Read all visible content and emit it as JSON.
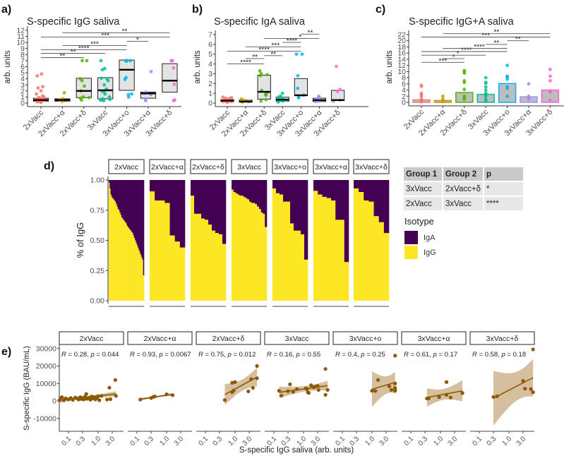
{
  "groups": [
    "2xVacc",
    "2xVacc+α",
    "2xVacc+δ",
    "3xVacc",
    "3xVacc+o",
    "3xVacc+α",
    "3xVacc+δ"
  ],
  "group_colors": [
    "#F8766D",
    "#C49A00",
    "#53B400",
    "#00C094",
    "#00B6EB",
    "#A58AFF",
    "#FB61D7"
  ],
  "chart_data": [
    {
      "panel_label": "a)",
      "type": "box",
      "title": "S-specific IgG saliva",
      "ylabel": "arb. units",
      "ylim": [
        0,
        12
      ],
      "yticks": [
        "0",
        "1",
        "2",
        "3",
        "4",
        "5",
        "6",
        "7",
        "8",
        "9",
        "10",
        "11",
        "12"
      ],
      "categories": [
        "2xVacc",
        "2xVacc+α",
        "2xVacc+δ",
        "3xVacc",
        "3xVacc+o",
        "3xVacc+α",
        "3xVacc+δ"
      ],
      "boxes": [
        {
          "q1": 0.3,
          "median": 0.5,
          "q3": 0.8
        },
        {
          "q1": 0.3,
          "median": 0.5,
          "q3": 0.7
        },
        {
          "q1": 0.9,
          "median": 2.0,
          "q3": 4.1
        },
        {
          "q1": 0.7,
          "median": 2.1,
          "q3": 4.2
        },
        {
          "q1": 2.1,
          "median": 5.5,
          "q3": 7.1
        },
        {
          "q1": 0.8,
          "median": 1.6,
          "q3": 1.8
        },
        {
          "q1": 1.8,
          "median": 3.7,
          "q3": 6.5
        }
      ],
      "points": [
        [
          0.2,
          0.3,
          0.4,
          0.5,
          0.6,
          0.3,
          0.4,
          0.5,
          0.7,
          0.8,
          0.9,
          1.0,
          1.2,
          1.5,
          2.0,
          2.5,
          2.7,
          4.5,
          4.8,
          0.1,
          0.2,
          0.6,
          0.4,
          0.5,
          0.3
        ],
        [
          0.3,
          0.4,
          0.5,
          0.6,
          0.7,
          1.7
        ],
        [
          0.5,
          0.8,
          0.9,
          1.0,
          2.0,
          2.8,
          3.7,
          4.0,
          7.0,
          7.0
        ],
        [
          0.4,
          0.5,
          0.6,
          0.7,
          1.0,
          1.5,
          1.9,
          2.3,
          3.0,
          3.7,
          4.0,
          4.1,
          5.5,
          5.7,
          7.0,
          0.5,
          2.0
        ],
        [
          1.0,
          1.4,
          1.5,
          3.9,
          4.2,
          7.0,
          7.0,
          7.0,
          6.9,
          7.0
        ],
        [
          0.4,
          0.7,
          1.4,
          1.6,
          1.8,
          5.2
        ],
        [
          0.4,
          0.5,
          3.1,
          5.8,
          7.0,
          7.0
        ]
      ],
      "significance": [
        {
          "from": "2xVacc",
          "to": "2xVacc+δ",
          "y": 7.5,
          "label": "**"
        },
        {
          "from": "2xVacc",
          "to": "3xVacc",
          "y": 8.2,
          "label": "**"
        },
        {
          "from": "2xVacc",
          "to": "3xVacc+o",
          "y": 8.8,
          "label": "****"
        },
        {
          "from": "2xVacc+α",
          "to": "3xVacc+o",
          "y": 9.5,
          "label": "***"
        },
        {
          "from": "3xVacc+o",
          "to": "3xVacc+α",
          "y": 10.2,
          "label": "*"
        },
        {
          "from": "2xVacc",
          "to": "3xVacc+δ",
          "y": 10.9,
          "label": "***"
        },
        {
          "from": "2xVacc+α",
          "to": "3xVacc+δ",
          "y": 11.6,
          "label": "**"
        }
      ]
    },
    {
      "panel_label": "b)",
      "type": "box",
      "title": "S-specific IgA saliva",
      "ylabel": "arb. units",
      "ylim": [
        0,
        7
      ],
      "yticks": [
        "0",
        "1",
        "2",
        "3",
        "4",
        "5",
        "6",
        "7"
      ],
      "categories": [
        "2xVacc",
        "2xVacc+α",
        "2xVacc+δ",
        "3xVacc",
        "3xVacc+o",
        "3xVacc+α",
        "3xVacc+δ"
      ],
      "boxes": [
        {
          "q1": 0.15,
          "median": 0.25,
          "q3": 0.35
        },
        {
          "q1": 0.1,
          "median": 0.15,
          "q3": 0.3
        },
        {
          "q1": 0.4,
          "median": 1.15,
          "q3": 2.85
        },
        {
          "q1": 0.2,
          "median": 0.35,
          "q3": 0.6
        },
        {
          "q1": 0.75,
          "median": 0.8,
          "q3": 2.5
        },
        {
          "q1": 0.15,
          "median": 0.3,
          "q3": 0.5
        },
        {
          "q1": 0.25,
          "median": 0.3,
          "q3": 1.3
        }
      ],
      "points": [
        [
          0.1,
          0.15,
          0.2,
          0.25,
          0.3,
          0.35,
          0.4,
          0.45,
          0.5,
          0.55,
          0.6,
          0.2,
          0.3,
          0.1,
          0.25,
          0.15,
          0.35,
          0.2,
          0.4,
          0.3
        ],
        [
          0.1,
          0.15,
          0.2,
          0.3,
          0.4
        ],
        [
          0.2,
          0.35,
          0.8,
          0.9,
          1.1,
          1.3,
          2.9,
          3.0,
          3.3,
          2.8
        ],
        [
          0.1,
          0.2,
          0.3,
          0.3,
          0.4,
          0.5,
          0.6,
          0.7,
          1.0,
          0.2,
          0.35
        ],
        [
          0.55,
          0.7,
          0.8,
          1.5,
          2.8,
          5.0,
          5.0
        ],
        [
          0.15,
          0.2,
          0.4,
          0.6,
          0.7
        ],
        [
          0.2,
          0.3,
          1.2,
          1.4,
          3.75
        ]
      ],
      "significance": [
        {
          "from": "2xVacc",
          "to": "2xVacc+δ",
          "y": 4.0,
          "label": "****"
        },
        {
          "from": "2xVacc+α",
          "to": "2xVacc+δ",
          "y": 4.55,
          "label": "**"
        },
        {
          "from": "2xVacc+δ",
          "to": "3xVacc",
          "y": 4.85,
          "label": "**"
        },
        {
          "from": "2xVacc",
          "to": "3xVacc+o",
          "y": 5.3,
          "label": "****"
        },
        {
          "from": "2xVacc+α",
          "to": "3xVacc+o",
          "y": 5.75,
          "label": "***"
        },
        {
          "from": "3xVacc",
          "to": "3xVacc+o",
          "y": 6.2,
          "label": "****"
        },
        {
          "from": "2xVacc+δ",
          "to": "3xVacc+α",
          "y": 6.6,
          "label": "*"
        },
        {
          "from": "3xVacc+o",
          "to": "3xVacc+α",
          "y": 7.05,
          "label": "**"
        }
      ]
    },
    {
      "panel_label": "c)",
      "type": "bar",
      "title": "S-specific IgG+A saliva",
      "ylabel": "arb. units",
      "ylim": [
        0,
        22
      ],
      "yticks": [
        "0",
        "2",
        "4",
        "6",
        "8",
        "10",
        "12",
        "14",
        "16",
        "18",
        "20",
        "22"
      ],
      "categories": [
        "2xVacc",
        "2xVacc+α",
        "2xVacc+δ",
        "3xVacc",
        "3xVacc+o",
        "3xVacc+α",
        "3xVacc+δ"
      ],
      "values": [
        0.8,
        0.6,
        3.2,
        2.6,
        6.1,
        1.8,
        4.0
      ],
      "points": [
        [
          0.2,
          0.5,
          1,
          2,
          2.5,
          3,
          5.2,
          5.5,
          0.8
        ],
        [
          0.3,
          0.5,
          1,
          2
        ],
        [
          1,
          2,
          4.2,
          6.5,
          7,
          9.5,
          10,
          10.3,
          1.5
        ],
        [
          0.5,
          1,
          2,
          3,
          4,
          5,
          6.2,
          6.5,
          8,
          2.5
        ],
        [
          2,
          4.5,
          5,
          7.5,
          8.2,
          8.5,
          12
        ],
        [
          1,
          1.5,
          2,
          6
        ],
        [
          0.7,
          3.4,
          3.7,
          7,
          8.5,
          10.7
        ]
      ],
      "significance": [
        {
          "from": "2xVacc",
          "to": "2xVacc+δ",
          "y": 13.0,
          "label": "***"
        },
        {
          "from": "2xVacc+α",
          "to": "2xVacc+δ",
          "y": 14.2,
          "label": "*"
        },
        {
          "from": "2xVacc",
          "to": "3xVacc",
          "y": 15.3,
          "label": "*"
        },
        {
          "from": "2xVacc",
          "to": "3xVacc+o",
          "y": 16.5,
          "label": "****"
        },
        {
          "from": "2xVacc+α",
          "to": "3xVacc+o",
          "y": 17.5,
          "label": "****"
        },
        {
          "from": "3xVacc",
          "to": "3xVacc+o",
          "y": 18.8,
          "label": "**"
        },
        {
          "from": "3xVacc+o",
          "to": "3xVacc+α",
          "y": 20.0,
          "label": "**"
        },
        {
          "from": "2xVacc",
          "to": "3xVacc+δ",
          "y": 21.2,
          "label": "***"
        },
        {
          "from": "2xVacc+α",
          "to": "3xVacc+δ",
          "y": 22.3,
          "label": "**"
        }
      ]
    },
    {
      "panel_label": "d)",
      "type": "stacked-bar",
      "ylabel": "% of IgG",
      "ylim": [
        0,
        1
      ],
      "yticks": [
        "0.00",
        "0.25",
        "0.50",
        "0.75",
        "1.00"
      ],
      "facets": [
        "2xVacc",
        "2xVacc+α",
        "2xVacc+δ",
        "3xVacc",
        "3xVacc+o",
        "3xVacc+α",
        "3xVacc+δ"
      ],
      "legend_title": "Isotype",
      "legend": [
        {
          "name": "IgA",
          "color": "#440154"
        },
        {
          "name": "IgG",
          "color": "#FDE725"
        }
      ],
      "igg_fraction": [
        [
          0.98,
          0.93,
          0.88,
          0.86,
          0.85,
          0.84,
          0.83,
          0.82,
          0.8,
          0.78,
          0.76,
          0.75,
          0.73,
          0.71,
          0.69,
          0.68,
          0.67,
          0.66,
          0.65,
          0.64,
          0.62,
          0.61,
          0.6,
          0.59,
          0.58,
          0.57,
          0.56,
          0.54,
          0.52,
          0.5,
          0.48,
          0.46,
          0.44,
          0.42,
          0.4,
          0.38,
          0.36,
          0.34,
          0.21
        ],
        [
          0.905,
          0.83,
          0.83,
          0.81,
          0.54,
          0.49,
          0.44
        ],
        [
          0.87,
          0.72,
          0.72,
          0.68,
          0.67,
          0.63,
          0.58,
          0.56,
          0.55,
          0.47
        ],
        [
          0.92,
          0.9,
          0.89,
          0.88,
          0.87,
          0.87,
          0.86,
          0.85,
          0.84,
          0.82,
          0.81,
          0.81,
          0.8,
          0.78,
          0.76,
          0.73,
          0.72,
          0.61
        ],
        [
          0.93,
          0.89,
          0.88,
          0.82,
          0.82,
          0.64,
          0.58,
          0.58,
          0.55,
          0.34
        ],
        [
          0.91,
          0.88,
          0.86,
          0.85,
          0.83,
          0.67,
          0.67,
          0.32
        ],
        [
          0.93,
          0.9,
          0.83,
          0.82,
          0.7,
          0.65,
          0.56
        ]
      ],
      "table": {
        "headers": [
          "Group 1",
          "Group 2",
          "p"
        ],
        "rows": [
          [
            "3xVacc",
            "2xVacc+δ",
            "*"
          ],
          [
            "2xVacc",
            "3xVacc",
            "****"
          ]
        ]
      }
    },
    {
      "panel_label": "e)",
      "type": "scatter",
      "xlabel": "S-specific IgG saliva (arb. units)",
      "ylabel": "S-specific IgG (BAU/mL)",
      "x_scale": "log10",
      "xticks": [
        "0.1",
        "0.3",
        "1.0",
        "3.0"
      ],
      "yticks": [
        "30000",
        "20000",
        "10000",
        "0",
        "-10000"
      ],
      "ylim": [
        -17000,
        32000
      ],
      "point_color": "#8B5A00",
      "ribbon_color": "#C8A97E",
      "facets": [
        {
          "name": "2xVacc",
          "R": "0.28",
          "p": "0.044",
          "points": [
            [
              0.05,
              500
            ],
            [
              0.055,
              1800
            ],
            [
              0.06,
              2200
            ],
            [
              0.07,
              400
            ],
            [
              0.08,
              1500
            ],
            [
              0.1,
              900
            ],
            [
              0.12,
              1700
            ],
            [
              0.14,
              600
            ],
            [
              0.17,
              2000
            ],
            [
              0.2,
              1300
            ],
            [
              0.22,
              800
            ],
            [
              0.25,
              2200
            ],
            [
              0.28,
              1100
            ],
            [
              0.3,
              1600
            ],
            [
              0.33,
              900
            ],
            [
              0.36,
              2500
            ],
            [
              0.4,
              4000
            ],
            [
              0.42,
              1200
            ],
            [
              0.5,
              1800
            ],
            [
              0.55,
              700
            ],
            [
              0.6,
              2600
            ],
            [
              0.65,
              1500
            ],
            [
              0.7,
              2200
            ],
            [
              0.8,
              900
            ],
            [
              0.9,
              1600
            ],
            [
              1.0,
              2700
            ],
            [
              1.1,
              400
            ],
            [
              1.3,
              2900
            ],
            [
              2.0,
              800
            ],
            [
              2.4,
              7600
            ],
            [
              2.6,
              1000
            ],
            [
              3.8,
              12000
            ],
            [
              4.0,
              2900
            ]
          ]
        },
        {
          "name": "2xVacc+α",
          "R": "0.93",
          "p": "0.0067",
          "points": [
            [
              0.13,
              800
            ],
            [
              0.3,
              1700
            ],
            [
              0.35,
              2200
            ],
            [
              0.4,
              2600
            ],
            [
              1.0,
              3800
            ],
            [
              1.6,
              3300
            ]
          ]
        },
        {
          "name": "2xVacc+δ",
          "R": "0.75",
          "p": "0.012",
          "points": [
            [
              0.45,
              500
            ],
            [
              0.8,
              5000
            ],
            [
              0.8,
              10400
            ],
            [
              0.9,
              6000
            ],
            [
              1.0,
              10800
            ],
            [
              2.8,
              5500
            ],
            [
              3.5,
              12500
            ],
            [
              4.0,
              7500
            ],
            [
              5.5,
              20000
            ],
            [
              5.5,
              13000
            ]
          ]
        },
        {
          "name": "3xVacc",
          "R": "0.16",
          "p": "0.55",
          "points": [
            [
              0.15,
              5800
            ],
            [
              0.18,
              3000
            ],
            [
              0.3,
              5600
            ],
            [
              0.35,
              9500
            ],
            [
              0.45,
              5200
            ],
            [
              0.6,
              6800
            ],
            [
              1.2,
              7200
            ],
            [
              1.3,
              6800
            ],
            [
              1.4,
              4900
            ],
            [
              1.5,
              4600
            ],
            [
              1.8,
              9000
            ],
            [
              2.2,
              7800
            ],
            [
              2.5,
              8200
            ],
            [
              3.0,
              8600
            ],
            [
              3.2,
              6300
            ],
            [
              5.5,
              18300
            ],
            [
              5.5,
              3500
            ],
            [
              6.5,
              6300
            ]
          ]
        },
        {
          "name": "3xVacc+o",
          "R": "0.4",
          "p": "0.25",
          "points": [
            [
              1.0,
              5800
            ],
            [
              1.3,
              5700
            ],
            [
              1.6,
              12000
            ],
            [
              3.8,
              8400
            ],
            [
              4.5,
              6300
            ],
            [
              6,
              25900
            ],
            [
              6,
              10000
            ],
            [
              6,
              7500
            ],
            [
              6,
              5800
            ],
            [
              6,
              6700
            ]
          ]
        },
        {
          "name": "3xVacc+α",
          "R": "0.61",
          "p": "0.17",
          "points": [
            [
              0.35,
              1400
            ],
            [
              0.4,
              1500
            ],
            [
              0.9,
              2200
            ],
            [
              1.6,
              3500
            ],
            [
              1.6,
              10800
            ],
            [
              2.2,
              2000
            ],
            [
              5.5,
              4500
            ]
          ]
        },
        {
          "name": "3xVacc+δ",
          "R": "0.58",
          "p": "0.18",
          "points": [
            [
              0.3,
              2300
            ],
            [
              0.4,
              2700
            ],
            [
              3.0,
              11500
            ],
            [
              3.5,
              7000
            ],
            [
              5.5,
              6800
            ],
            [
              6.5,
              29500
            ],
            [
              6.5,
              5000
            ]
          ]
        }
      ]
    }
  ]
}
